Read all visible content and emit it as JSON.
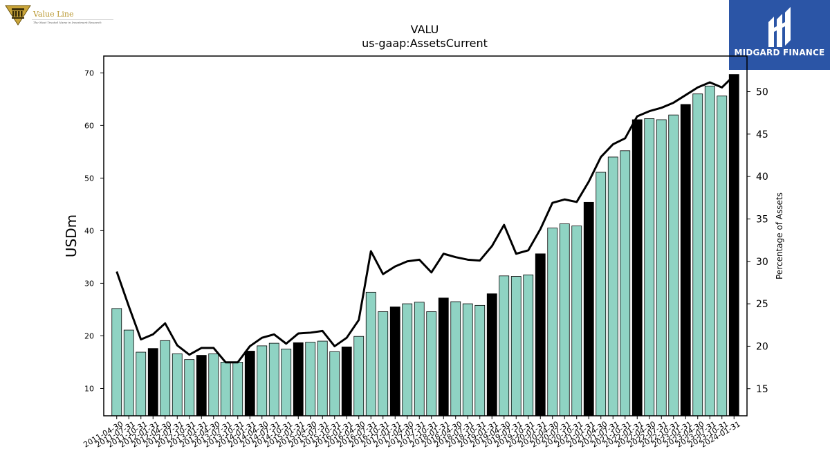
{
  "branding": {
    "left_logo_name": "Value Line",
    "left_logo_tagline": "The Most Trusted Name in Investment Research",
    "right_logo_name": "MIDGARD FINANCE"
  },
  "chart_data": {
    "type": "bar",
    "title": "VALU",
    "subtitle": "us-gaap:AssetsCurrent",
    "ylabel": "USDm",
    "y2label": "Percentage of Assets",
    "ylim": [
      4.8,
      73.2
    ],
    "y2lim": [
      11.8,
      54.2
    ],
    "yticks": [
      10,
      20,
      30,
      40,
      50,
      60,
      70
    ],
    "y2ticks": [
      15,
      20,
      25,
      30,
      35,
      40,
      45,
      50
    ],
    "colors": {
      "bar": "#8fd3c3",
      "bar_highlight": "#000000",
      "line": "#000000"
    },
    "categories": [
      "2011-04-30",
      "2011-07-31",
      "2011-10-31",
      "2012-01-31",
      "2012-04-30",
      "2012-07-31",
      "2012-10-31",
      "2013-01-31",
      "2013-04-30",
      "2013-07-31",
      "2013-10-31",
      "2014-01-31",
      "2014-04-30",
      "2014-07-31",
      "2014-10-31",
      "2015-01-31",
      "2015-04-30",
      "2015-07-31",
      "2015-10-31",
      "2016-01-31",
      "2016-04-30",
      "2016-07-31",
      "2016-10-31",
      "2017-01-31",
      "2017-04-30",
      "2017-07-31",
      "2017-10-31",
      "2018-01-31",
      "2018-04-30",
      "2018-07-31",
      "2018-10-31",
      "2019-01-31",
      "2019-04-30",
      "2019-07-31",
      "2019-10-31",
      "2020-01-31",
      "2020-04-30",
      "2020-07-31",
      "2020-10-31",
      "2021-01-31",
      "2021-04-30",
      "2021-07-31",
      "2021-10-31",
      "2022-01-31",
      "2022-04-30",
      "2022-07-31",
      "2022-10-31",
      "2023-01-31",
      "2023-04-30",
      "2023-07-31",
      "2023-10-31",
      "2024-01-31"
    ],
    "series": [
      {
        "type": "bar",
        "axis": "left",
        "values": [
          25.2,
          21.1,
          16.9,
          17.6,
          19.1,
          16.6,
          15.5,
          16.3,
          16.6,
          15.0,
          15.0,
          17.1,
          18.1,
          18.6,
          17.5,
          18.7,
          18.8,
          19.0,
          17.0,
          17.9,
          19.9,
          28.3,
          24.6,
          25.5,
          26.1,
          26.4,
          24.6,
          27.2,
          26.5,
          26.1,
          25.8,
          28.0,
          31.4,
          31.3,
          31.6,
          35.6,
          40.5,
          41.3,
          40.9,
          45.4,
          51.1,
          54.0,
          55.2,
          61.1,
          61.3,
          61.1,
          62.0,
          64.0,
          66.0,
          67.5,
          65.6,
          69.7
        ],
        "highlight": [
          false,
          false,
          false,
          true,
          false,
          false,
          false,
          true,
          false,
          false,
          false,
          true,
          false,
          false,
          false,
          true,
          false,
          false,
          false,
          true,
          false,
          false,
          false,
          true,
          false,
          false,
          false,
          true,
          false,
          false,
          false,
          true,
          false,
          false,
          false,
          true,
          false,
          false,
          false,
          true,
          false,
          false,
          false,
          true,
          false,
          false,
          false,
          true,
          false,
          false,
          false,
          true
        ]
      },
      {
        "type": "line",
        "axis": "right",
        "values": [
          28.8,
          24.7,
          20.8,
          21.4,
          22.7,
          20.1,
          19.0,
          19.8,
          19.8,
          18.1,
          18.1,
          20.0,
          21.0,
          21.4,
          20.3,
          21.5,
          21.6,
          21.8,
          20.0,
          21.0,
          23.1,
          31.2,
          28.5,
          29.4,
          30.0,
          30.2,
          28.7,
          30.9,
          30.5,
          30.2,
          30.1,
          31.8,
          34.3,
          30.9,
          31.3,
          33.8,
          36.9,
          37.3,
          37.0,
          39.4,
          42.3,
          43.8,
          44.5,
          47.1,
          47.7,
          48.1,
          48.7,
          49.6,
          50.5,
          51.1,
          50.5,
          51.9
        ]
      }
    ],
    "grid": false,
    "legend": "none"
  }
}
